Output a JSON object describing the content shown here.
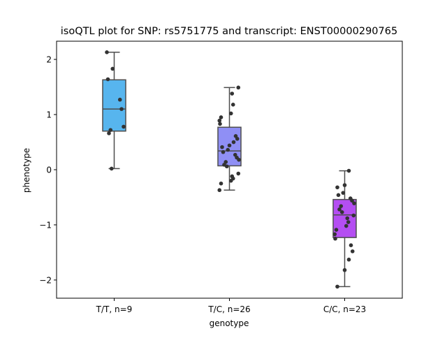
{
  "chart_data": {
    "type": "box",
    "title": "isoQTL plot for SNP: rs5751775 and transcript: ENST00000290765",
    "xlabel": "genotype",
    "ylabel": "phenotype",
    "ylim": [
      -2.33,
      2.33
    ],
    "yticks": [
      -2,
      -1,
      0,
      1,
      2
    ],
    "ytick_labels": [
      "−2",
      "−1",
      "0",
      "1",
      "2"
    ],
    "grid": false,
    "categories": [
      "T/T, n=9",
      "T/C, n=26",
      "C/C, n=23"
    ],
    "colors": [
      "#57b5ee",
      "#8f8ff5",
      "#b44ef2"
    ],
    "boxes": [
      {
        "q1": 0.7,
        "median": 1.1,
        "q3": 1.63,
        "whisker_low": 0.02,
        "whisker_high": 2.13
      },
      {
        "q1": 0.07,
        "median": 0.34,
        "q3": 0.77,
        "whisker_low": -0.37,
        "whisker_high": 1.49
      },
      {
        "q1": -1.23,
        "median": -0.82,
        "q3": -0.54,
        "whisker_low": -2.12,
        "whisker_high": -0.02
      }
    ],
    "points": [
      [
        2.13,
        1.83,
        1.64,
        1.27,
        1.1,
        0.78,
        0.72,
        0.66,
        0.02
      ],
      [
        1.49,
        1.38,
        1.18,
        1.02,
        0.95,
        0.89,
        0.83,
        0.61,
        0.56,
        0.5,
        0.44,
        0.41,
        0.36,
        0.32,
        0.27,
        0.22,
        0.18,
        0.14,
        0.09,
        0.06,
        -0.07,
        -0.12,
        -0.16,
        -0.2,
        -0.25,
        -0.37
      ],
      [
        -0.02,
        -0.28,
        -0.32,
        -0.42,
        -0.46,
        -0.52,
        -0.56,
        -0.61,
        -0.66,
        -0.72,
        -0.77,
        -0.83,
        -0.88,
        -0.95,
        -1.02,
        -1.09,
        -1.17,
        -1.25,
        -1.37,
        -1.48,
        -1.63,
        -1.82,
        -2.12
      ]
    ]
  }
}
